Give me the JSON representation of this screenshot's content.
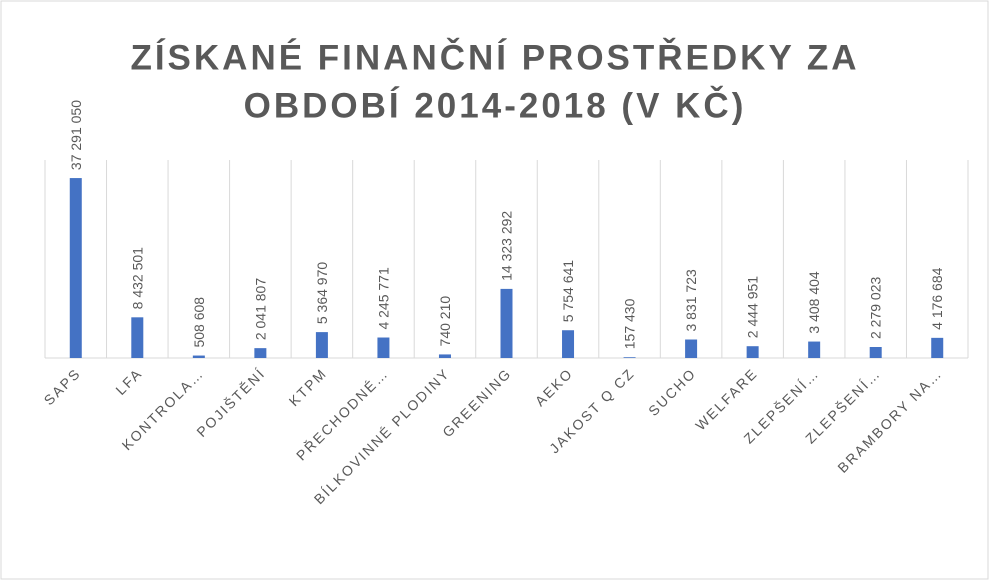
{
  "chart_data": {
    "type": "bar",
    "title_lines": [
      "ZÍSKANÉ FINANČNÍ PROSTŘEDKY ZA",
      "OBDOBÍ 2014-2018 (V KČ)"
    ],
    "categories": [
      "SAPS",
      "LFA",
      "KONTROLA…",
      "POJIŠTĚNÍ",
      "KTPM",
      "PŘECHODNÉ…",
      "BÍLKOVINNÉ PLODINY",
      "GREENING",
      "AEKO",
      "JAKOST Q CZ",
      "SUCHO",
      "WELFARE",
      "ZLEPŠENÍ…",
      "ZLEPŠENÍ…",
      "BRAMBORY NA…"
    ],
    "values": [
      37291050,
      8432501,
      508608,
      2041807,
      5364970,
      4245771,
      740210,
      14323292,
      5754641,
      157430,
      3831723,
      2444951,
      3408404,
      2279023,
      4176684
    ],
    "value_labels": [
      "37 291 050",
      "8 432 501",
      "508 608",
      "2 041 807",
      "5 364 970",
      "4 245 771",
      "740 210",
      "14 323 292",
      "5 754 641",
      "157 430",
      "3 831 723",
      "2 444 951",
      "3 408 404",
      "2 279 023",
      "4 176 684"
    ],
    "color": "#4472c4",
    "ylim": [
      0,
      40000000
    ],
    "grid": true
  }
}
